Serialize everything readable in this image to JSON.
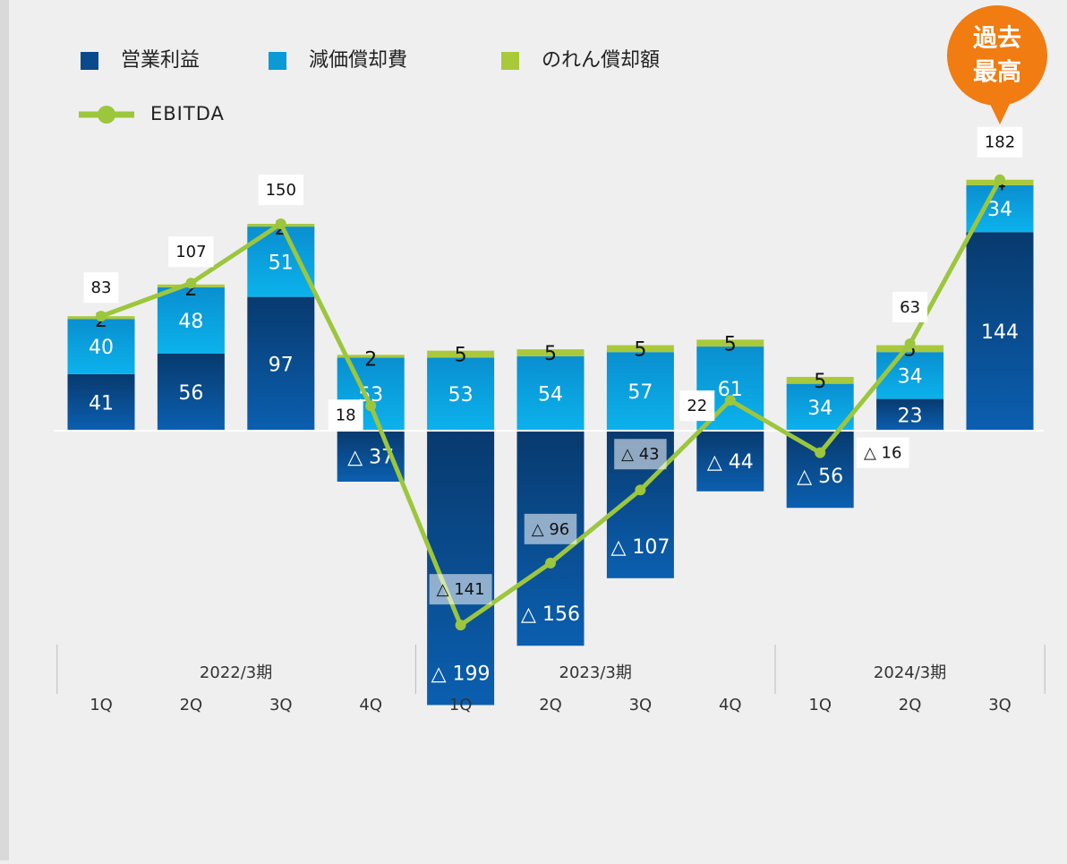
{
  "chart_data": {
    "type": "bar",
    "categories": [
      "1Q",
      "2Q",
      "3Q",
      "4Q",
      "1Q",
      "2Q",
      "3Q",
      "4Q",
      "1Q",
      "2Q",
      "3Q"
    ],
    "groups": [
      {
        "label": "2022/3期",
        "span": 4
      },
      {
        "label": "2023/3期",
        "span": 4
      },
      {
        "label": "2024/3期",
        "span": 3
      }
    ],
    "series": [
      {
        "name": "営業利益",
        "type": "bar",
        "color": "#0a4a8c",
        "values": [
          41,
          56,
          97,
          -37,
          -199,
          -156,
          -107,
          -44,
          -56,
          23,
          144
        ],
        "value_labels": [
          "41",
          "56",
          "97",
          "△ 37",
          "△ 199",
          "△ 156",
          "△ 107",
          "△ 44",
          "△ 56",
          "23",
          "144"
        ]
      },
      {
        "name": "減価償却費",
        "type": "bar",
        "color": "#0a9ad8",
        "values": [
          40,
          48,
          51,
          53,
          53,
          54,
          57,
          61,
          34,
          34,
          34
        ]
      },
      {
        "name": "のれん償却額",
        "type": "bar",
        "color": "#a9c93b",
        "values": [
          2,
          2,
          2,
          2,
          5,
          5,
          5,
          5,
          5,
          5,
          4
        ]
      },
      {
        "name": "EBITDA",
        "type": "line",
        "color": "#9cc63c",
        "values": [
          83,
          107,
          150,
          18,
          -141,
          -96,
          -43,
          22,
          -16,
          63,
          182
        ],
        "value_labels": [
          "83",
          "107",
          "150",
          "18",
          "△ 141",
          "△ 96",
          "△ 43",
          "22",
          "△ 16",
          "63",
          "182"
        ]
      }
    ],
    "annotation": [
      "過去",
      "最高"
    ]
  }
}
